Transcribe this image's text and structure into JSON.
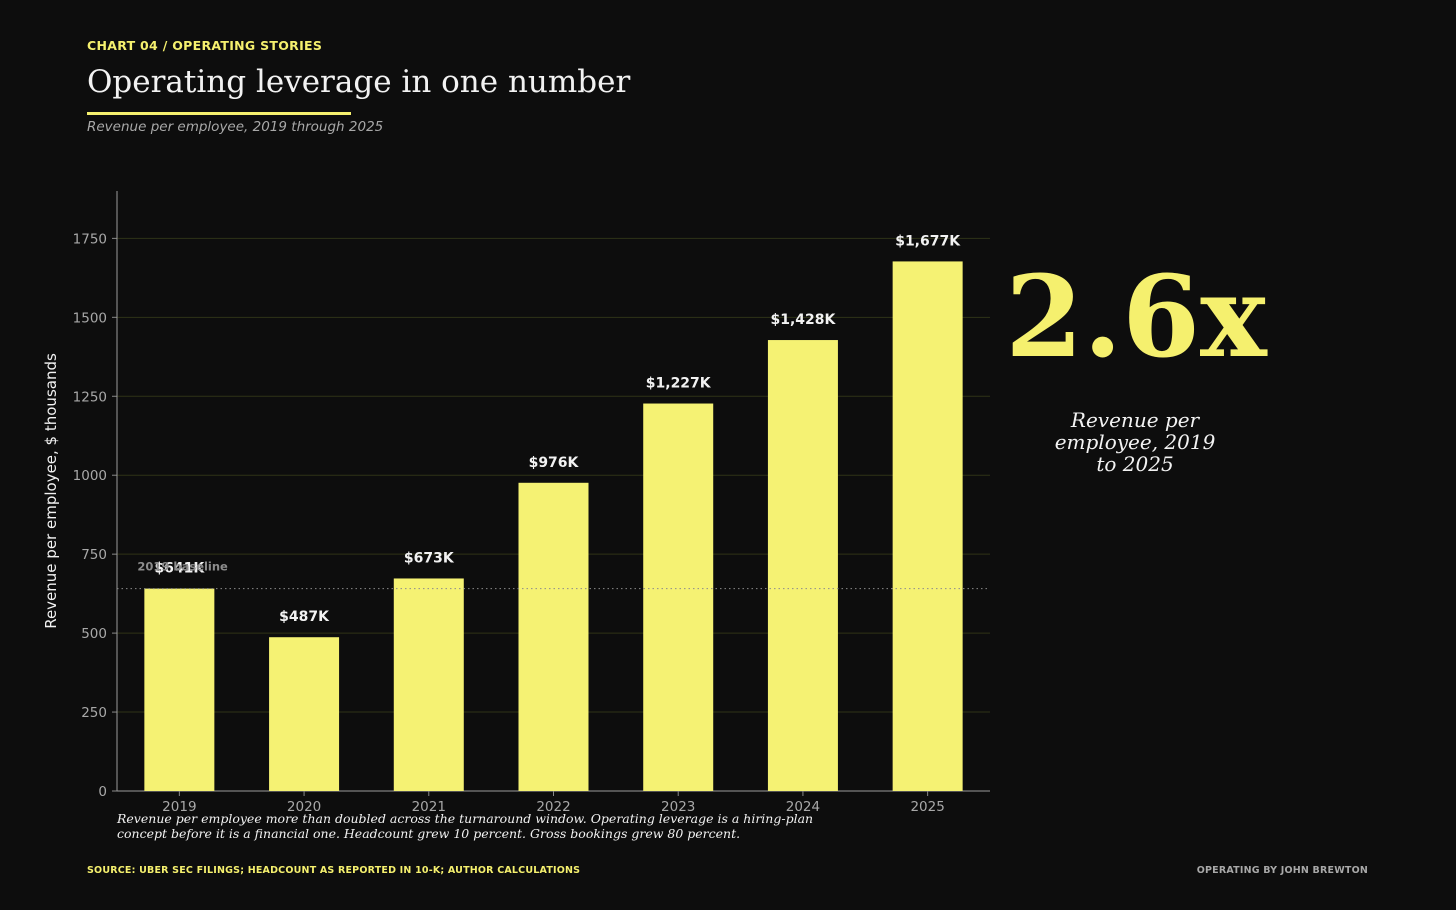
{
  "header": {
    "kicker": "CHART 04 / OPERATING STORIES",
    "title": "Operating leverage in one number",
    "subtitle": "Revenue per employee, 2019 through 2025"
  },
  "callout": {
    "value": "2.6x",
    "caption": "Revenue per employee, 2019 to 2025"
  },
  "note": "Revenue per employee more than doubled across the turnaround window. Operating leverage is a hiring-plan concept before it is a financial one. Headcount grew 10 percent. Gross bookings grew 80 percent.",
  "footer": {
    "source": "SOURCE: UBER SEC FILINGS; HEADCOUNT AS REPORTED IN 10-K; AUTHOR CALCULATIONS",
    "credit": "OPERATING BY JOHN BREWTON"
  },
  "colors": {
    "background": "#0d0d0d",
    "accent": "#f5f06e",
    "bar": "#f5f273",
    "text": "#f2f2f2",
    "muted": "#a8a8a8",
    "grid": "#2f3317"
  },
  "chart_data": {
    "type": "bar",
    "categories": [
      "2019",
      "2020",
      "2021",
      "2022",
      "2023",
      "2024",
      "2025"
    ],
    "values": [
      641,
      487,
      673,
      976,
      1227,
      1428,
      1677
    ],
    "data_labels": [
      "$641K",
      "$487K",
      "$673K",
      "$976K",
      "$1,227K",
      "$1,428K",
      "$1,677K"
    ],
    "ylabel": "Revenue per employee, $ thousands",
    "xlabel": "",
    "ylim": [
      0,
      1900
    ],
    "yticks": [
      0,
      250,
      500,
      750,
      1000,
      1250,
      1500,
      1750
    ],
    "grid": true,
    "reference_line": {
      "value": 641,
      "label": "2019 baseline",
      "style": "dotted"
    }
  }
}
